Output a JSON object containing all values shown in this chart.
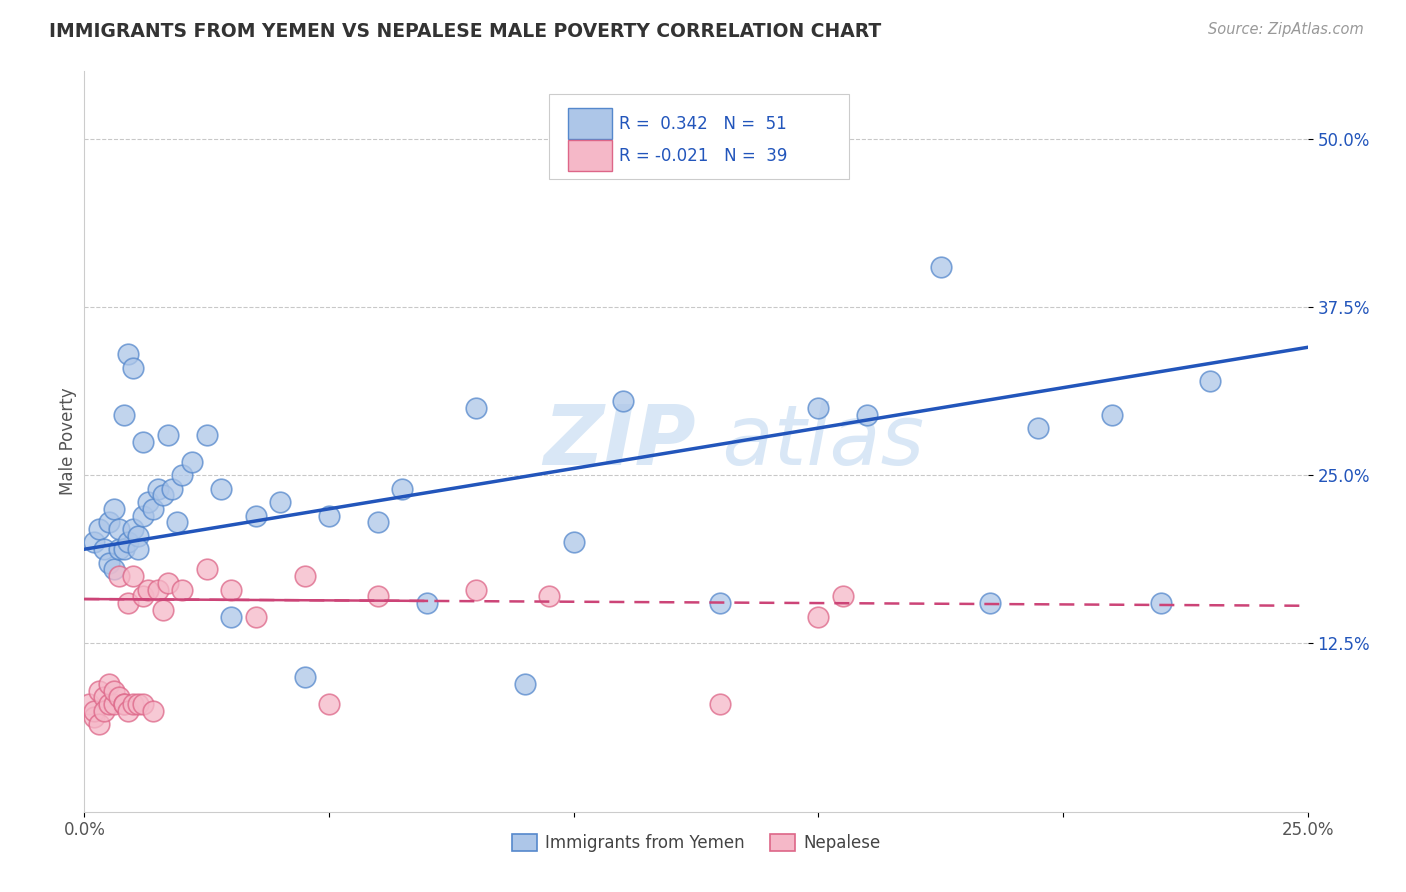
{
  "title": "IMMIGRANTS FROM YEMEN VS NEPALESE MALE POVERTY CORRELATION CHART",
  "source": "Source: ZipAtlas.com",
  "ylabel": "Male Poverty",
  "xlim": [
    0.0,
    0.25
  ],
  "ylim": [
    0.0,
    0.55
  ],
  "xticks": [
    0.0,
    0.05,
    0.1,
    0.15,
    0.2,
    0.25
  ],
  "xtick_labels": [
    "0.0%",
    "",
    "",
    "",
    "",
    "25.0%"
  ],
  "ytick_vals_right": [
    0.5,
    0.375,
    0.25,
    0.125
  ],
  "ytick_labels_right": [
    "50.0%",
    "37.5%",
    "25.0%",
    "12.5%"
  ],
  "grid_color": "#bbbbbb",
  "background_color": "#ffffff",
  "blue_fill_color": "#adc6e8",
  "blue_edge_color": "#5588cc",
  "pink_fill_color": "#f5b8c8",
  "pink_edge_color": "#dd6688",
  "blue_line_color": "#2255bb",
  "pink_line_color": "#cc4477",
  "legend_R_blue": "0.342",
  "legend_N_blue": "51",
  "legend_R_pink": "-0.021",
  "legend_N_pink": "39",
  "legend_label_blue": "Immigrants from Yemen",
  "legend_label_pink": "Nepalese",
  "watermark_color": "#d5e5f5",
  "blue_scatter_x": [
    0.002,
    0.003,
    0.004,
    0.005,
    0.005,
    0.006,
    0.006,
    0.007,
    0.007,
    0.008,
    0.008,
    0.009,
    0.009,
    0.01,
    0.01,
    0.011,
    0.011,
    0.012,
    0.012,
    0.013,
    0.014,
    0.015,
    0.016,
    0.017,
    0.018,
    0.019,
    0.02,
    0.022,
    0.025,
    0.028,
    0.03,
    0.035,
    0.04,
    0.045,
    0.05,
    0.06,
    0.065,
    0.07,
    0.08,
    0.09,
    0.1,
    0.11,
    0.13,
    0.15,
    0.16,
    0.175,
    0.185,
    0.195,
    0.21,
    0.22,
    0.23
  ],
  "blue_scatter_y": [
    0.2,
    0.21,
    0.195,
    0.185,
    0.215,
    0.18,
    0.225,
    0.195,
    0.21,
    0.295,
    0.195,
    0.34,
    0.2,
    0.21,
    0.33,
    0.205,
    0.195,
    0.22,
    0.275,
    0.23,
    0.225,
    0.24,
    0.235,
    0.28,
    0.24,
    0.215,
    0.25,
    0.26,
    0.28,
    0.24,
    0.145,
    0.22,
    0.23,
    0.1,
    0.22,
    0.215,
    0.24,
    0.155,
    0.3,
    0.095,
    0.2,
    0.305,
    0.155,
    0.3,
    0.295,
    0.405,
    0.155,
    0.285,
    0.295,
    0.155,
    0.32
  ],
  "pink_scatter_x": [
    0.001,
    0.002,
    0.002,
    0.003,
    0.003,
    0.004,
    0.004,
    0.005,
    0.005,
    0.006,
    0.006,
    0.007,
    0.007,
    0.008,
    0.008,
    0.009,
    0.009,
    0.01,
    0.01,
    0.011,
    0.012,
    0.012,
    0.013,
    0.014,
    0.015,
    0.016,
    0.017,
    0.02,
    0.025,
    0.03,
    0.035,
    0.045,
    0.05,
    0.06,
    0.08,
    0.095,
    0.13,
    0.15,
    0.155
  ],
  "pink_scatter_y": [
    0.08,
    0.07,
    0.075,
    0.065,
    0.09,
    0.085,
    0.075,
    0.08,
    0.095,
    0.08,
    0.09,
    0.085,
    0.175,
    0.08,
    0.08,
    0.075,
    0.155,
    0.08,
    0.175,
    0.08,
    0.16,
    0.08,
    0.165,
    0.075,
    0.165,
    0.15,
    0.17,
    0.165,
    0.18,
    0.165,
    0.145,
    0.175,
    0.08,
    0.16,
    0.165,
    0.16,
    0.08,
    0.145,
    0.16
  ],
  "blue_line_x0": 0.0,
  "blue_line_y0": 0.195,
  "blue_line_x1": 0.25,
  "blue_line_y1": 0.345,
  "pink_line_x0": 0.0,
  "pink_line_y0": 0.158,
  "pink_line_x1": 0.25,
  "pink_line_y1": 0.153
}
